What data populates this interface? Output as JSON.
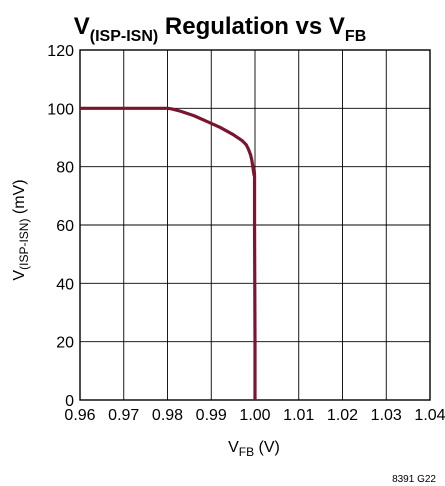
{
  "chart_data": {
    "type": "line",
    "title": {
      "main": "V",
      "main_sub": "(ISP-ISN)",
      "rest": " Regulation vs V",
      "rest_sub": "FB"
    },
    "xlabel": {
      "main": "V",
      "sub": "FB",
      "rest": " (V)"
    },
    "ylabel": {
      "main": "V",
      "sub": "(ISP-ISN)",
      "rest": " (mV)"
    },
    "xlim": [
      0.96,
      1.04
    ],
    "ylim": [
      0,
      120
    ],
    "x_ticks": [
      "0.96",
      "0.97",
      "0.98",
      "0.99",
      "1.00",
      "1.01",
      "1.02",
      "1.03",
      "1.04"
    ],
    "y_ticks": [
      "0",
      "20",
      "40",
      "60",
      "80",
      "100",
      "120"
    ],
    "grid": true,
    "series": [
      {
        "color": "#7a1530",
        "x": [
          0.96,
          0.97,
          0.98,
          0.981,
          0.983,
          0.986,
          0.989,
          0.992,
          0.995,
          0.997,
          0.998,
          0.9985,
          0.999,
          0.9993,
          0.9995,
          0.9997,
          0.9998,
          0.9998,
          0.9999,
          0.9999,
          1.0,
          1.0
        ],
        "y": [
          100,
          100,
          100,
          99.8,
          99,
          97.5,
          95.5,
          93.5,
          91,
          89,
          87.5,
          86,
          84,
          82,
          80,
          78,
          77,
          79,
          77,
          60,
          20,
          0
        ]
      }
    ],
    "figure_id": "8391 G22"
  }
}
